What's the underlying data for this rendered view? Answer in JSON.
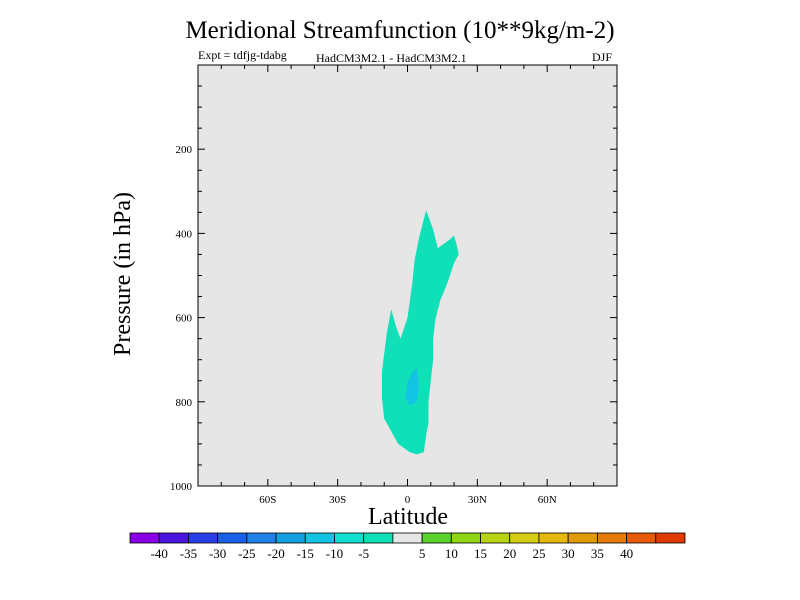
{
  "chart_data": {
    "type": "contour",
    "title": "Meridional Streamfunction (10**9kg/m-2)",
    "subtitle_left": "Expt = tdfjg-tdabg",
    "subtitle_center": "HadCM3M2.1 - HadCM3M2.1",
    "subtitle_right": "DJF",
    "xlabel": "Latitude",
    "ylabel": "Pressure (in hPa)",
    "xlim": [
      -90,
      90
    ],
    "ylim": [
      1000,
      0
    ],
    "x_ticks": [
      {
        "value": -60,
        "label": "60S"
      },
      {
        "value": -30,
        "label": "30S"
      },
      {
        "value": 0,
        "label": "0"
      },
      {
        "value": 30,
        "label": "30N"
      },
      {
        "value": 60,
        "label": "60N"
      }
    ],
    "y_ticks": [
      {
        "value": 200,
        "label": "200"
      },
      {
        "value": 400,
        "label": "400"
      },
      {
        "value": 600,
        "label": "600"
      },
      {
        "value": 800,
        "label": "800"
      },
      {
        "value": 1000,
        "label": "1000"
      }
    ],
    "background_color": "#e6e6e6",
    "regions": [
      {
        "name": "band -10 to -5",
        "color": "#10e0b8",
        "points": [
          [
            8,
            345
          ],
          [
            11,
            390
          ],
          [
            13,
            435
          ],
          [
            18,
            415
          ],
          [
            20,
            405
          ],
          [
            21,
            425
          ],
          [
            22,
            450
          ],
          [
            20,
            470
          ],
          [
            17,
            520
          ],
          [
            14,
            560
          ],
          [
            12,
            605
          ],
          [
            11,
            650
          ],
          [
            11,
            700
          ],
          [
            10,
            750
          ],
          [
            9,
            800
          ],
          [
            9,
            850
          ],
          [
            8,
            880
          ],
          [
            7,
            920
          ],
          [
            4,
            925
          ],
          [
            1,
            920
          ],
          [
            -4,
            900
          ],
          [
            -7,
            870
          ],
          [
            -10,
            840
          ],
          [
            -11,
            790
          ],
          [
            -11,
            730
          ],
          [
            -9,
            640
          ],
          [
            -7,
            580
          ],
          [
            -5,
            620
          ],
          [
            -3,
            650
          ],
          [
            0,
            600
          ],
          [
            2,
            520
          ],
          [
            3,
            465
          ],
          [
            5,
            410
          ]
        ]
      },
      {
        "name": "band -15 to -10",
        "color": "#12c4e2",
        "points": [
          [
            4,
            720
          ],
          [
            5,
            760
          ],
          [
            4,
            800
          ],
          [
            1,
            808
          ],
          [
            -1,
            790
          ],
          [
            0,
            755
          ],
          [
            2,
            730
          ]
        ]
      }
    ],
    "colorbar": {
      "colors": [
        "#8a00e6",
        "#4a14e0",
        "#2a3ee6",
        "#1a60e6",
        "#1e82e6",
        "#14a0e0",
        "#12c4e2",
        "#10e0d0",
        "#10e0b8",
        "#e6e6e6",
        "#5ad22a",
        "#8ed614",
        "#b8d214",
        "#d6cc12",
        "#e6b80e",
        "#e09a0a",
        "#e67a0a",
        "#e65a06",
        "#e03a00"
      ],
      "labels": [
        "-40",
        "-35",
        "-30",
        "-25",
        "-20",
        "-15",
        "-10",
        "-5",
        "5",
        "10",
        "15",
        "20",
        "25",
        "30",
        "35",
        "40"
      ]
    }
  }
}
